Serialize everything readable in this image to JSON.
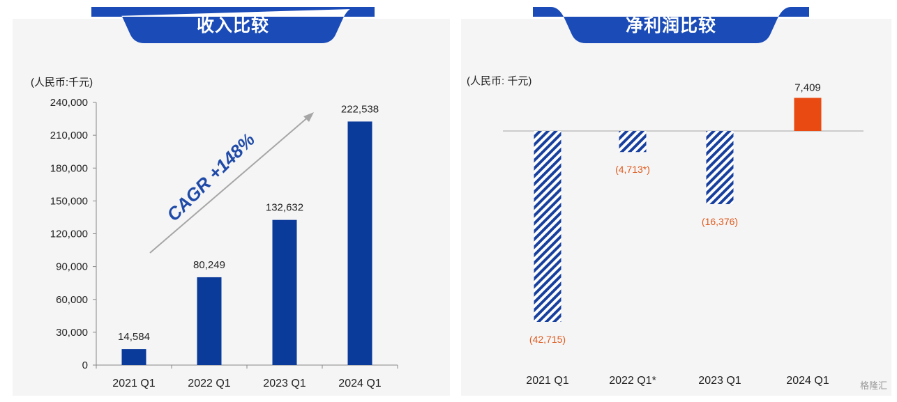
{
  "colors": {
    "tab_blue": "#1a4bb7",
    "bar_blue": "#0a3a9a",
    "hatch_blue": "#173f9e",
    "negative_label": "#e05a1e",
    "positive_bar": "#e84a12",
    "cagr_text": "#1f4aa8"
  },
  "watermark": "格隆汇",
  "chart_data": [
    {
      "type": "bar",
      "title": "收入比较",
      "unit_label": "(人民币:千元)",
      "categories": [
        "2021 Q1",
        "2022 Q1",
        "2023 Q1",
        "2024 Q1"
      ],
      "values": [
        14584,
        80249,
        132632,
        222538
      ],
      "value_labels": [
        "14,584",
        "80,249",
        "132,632",
        "222,538"
      ],
      "ylim": [
        0,
        240000
      ],
      "yticks": [
        0,
        30000,
        60000,
        90000,
        120000,
        150000,
        180000,
        210000,
        240000
      ],
      "ytick_labels": [
        "0",
        "30,000",
        "60,000",
        "90,000",
        "120,000",
        "150,000",
        "180,000",
        "210,000",
        "240,000"
      ],
      "annotation": "CAGR +148%",
      "grid": false
    },
    {
      "type": "bar",
      "title": "净利润比较",
      "unit_label": "(人民币:  千元)",
      "categories": [
        "2021 Q1",
        "2022 Q1*",
        "2023 Q1",
        "2024 Q1"
      ],
      "values": [
        -42715,
        -4713,
        -16376,
        7409
      ],
      "value_labels": [
        "(42,715)",
        "(4,713*)",
        "(16,376)",
        "7,409"
      ],
      "grid": false
    }
  ]
}
